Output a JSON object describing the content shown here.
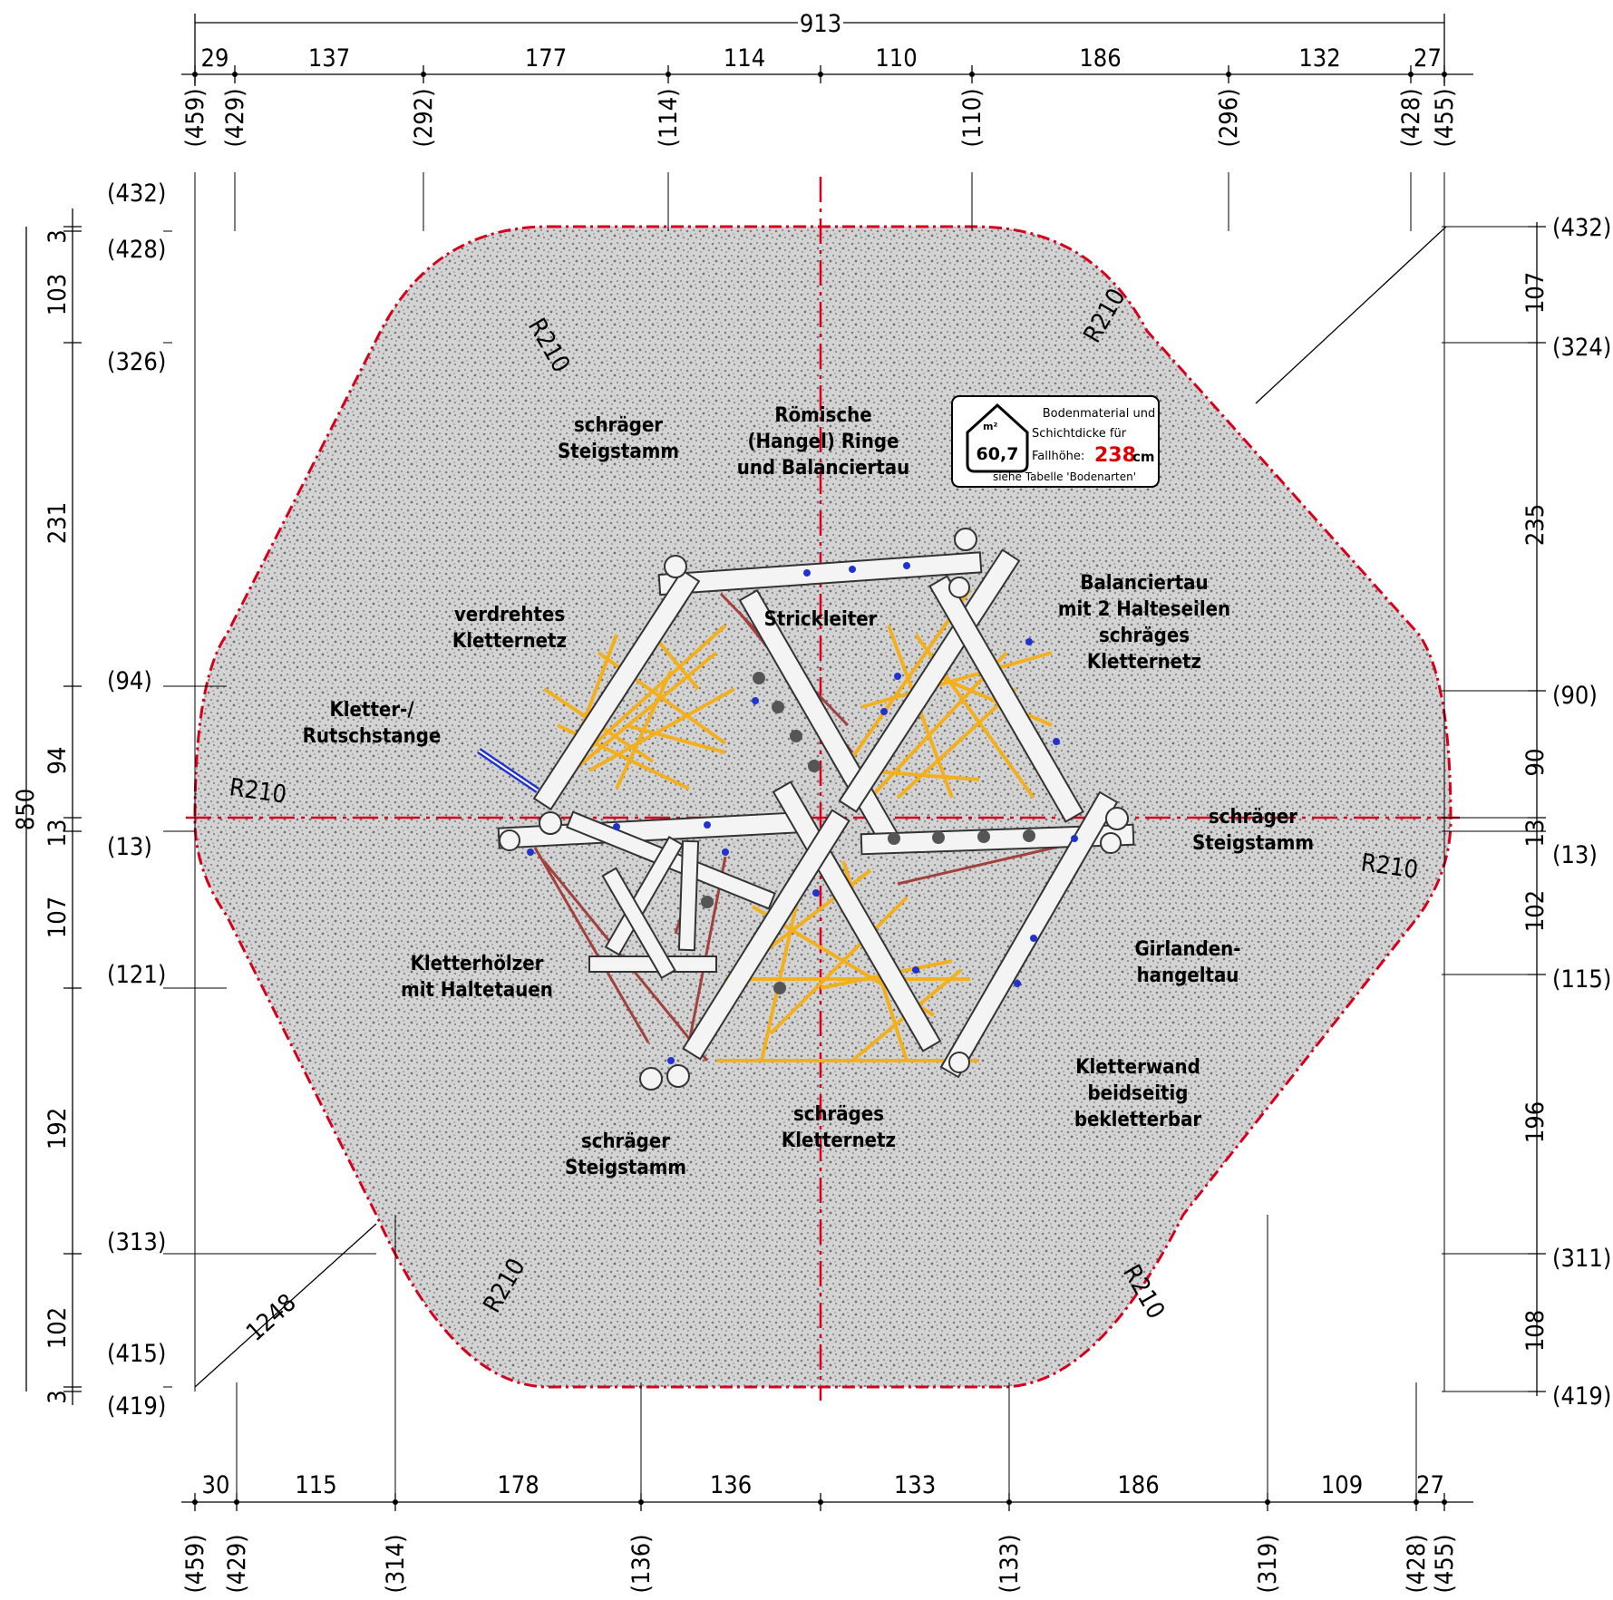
{
  "drawing": {
    "total_width": "913",
    "total_height": "850",
    "diagonal": "1248",
    "radius_label": "R210",
    "top_dims": [
      "29",
      "137",
      "177",
      "114",
      "110",
      "186",
      "132",
      "27"
    ],
    "top_coords": [
      "(459)",
      "(429)",
      "(292)",
      "(114)",
      "(110)",
      "(296)",
      "(428)",
      "(455)"
    ],
    "bottom_dims": [
      "30",
      "115",
      "178",
      "136",
      "133",
      "186",
      "109",
      "27"
    ],
    "bottom_coords": [
      "(459)",
      "(429)",
      "(314)",
      "(136)",
      "(133)",
      "(319)",
      "(428)",
      "(455)"
    ],
    "left_dims": [
      "3",
      "103",
      "231",
      "94",
      "13",
      "107",
      "192",
      "102",
      "3"
    ],
    "left_coords": [
      "(432)",
      "(428)",
      "(326)",
      "(94)",
      "(13)",
      "(121)",
      "(313)",
      "(415)",
      "(419)"
    ],
    "right_dims": [
      "107",
      "235",
      "90",
      "13",
      "102",
      "196",
      "108"
    ],
    "right_coords": [
      "(432)",
      "(324)",
      "(90)",
      "(13)",
      "(115)",
      "(311)",
      "(419)"
    ]
  },
  "labels": {
    "steigstamm_tl_1": "schräger",
    "steigstamm_tl_2": "Steigstamm",
    "ringe_1": "Römische",
    "ringe_2": "(Hangel) Ringe",
    "ringe_3": "und Balanciertau",
    "balanciertau_1": "Balanciertau",
    "balanciertau_2": "mit 2 Halteseilen",
    "balanciertau_3": "schräges",
    "balanciertau_4": "Kletternetz",
    "strickleiter": "Strickleiter",
    "netz_1": "verdrehtes",
    "netz_2": "Kletternetz",
    "stange_1": "Kletter-/",
    "stange_2": "Rutschstange",
    "steigstamm_r_1": "schräger",
    "steigstamm_r_2": "Steigstamm",
    "hoelzer_1": "Kletterhölzer",
    "hoelzer_2": "mit Haltetauen",
    "girlanden_1": "Girlanden-",
    "girlanden_2": "hangeltau",
    "wand_1": "Kletterwand",
    "wand_2": "beidseitig",
    "wand_3": "bekletterbar",
    "schraeges_1": "schräges",
    "schraeges_2": "Kletternetz",
    "steigstamm_bl_1": "schräger",
    "steigstamm_bl_2": "Steigstamm"
  },
  "legend": {
    "area_value": "60,7",
    "area_unit": "m²",
    "line1": "Bodenmaterial und",
    "line2": "Schichtdicke für",
    "line3_prefix": "Fallhöhe:",
    "fall_height": "238",
    "fall_unit": "cm",
    "line4": "siehe Tabelle 'Bodenarten'"
  },
  "colors": {
    "boundary": "#d6001c",
    "surface": "#c9c9c9",
    "net": "#f2b01e",
    "rope": "#a2403e",
    "fall_height": "#e00000"
  }
}
